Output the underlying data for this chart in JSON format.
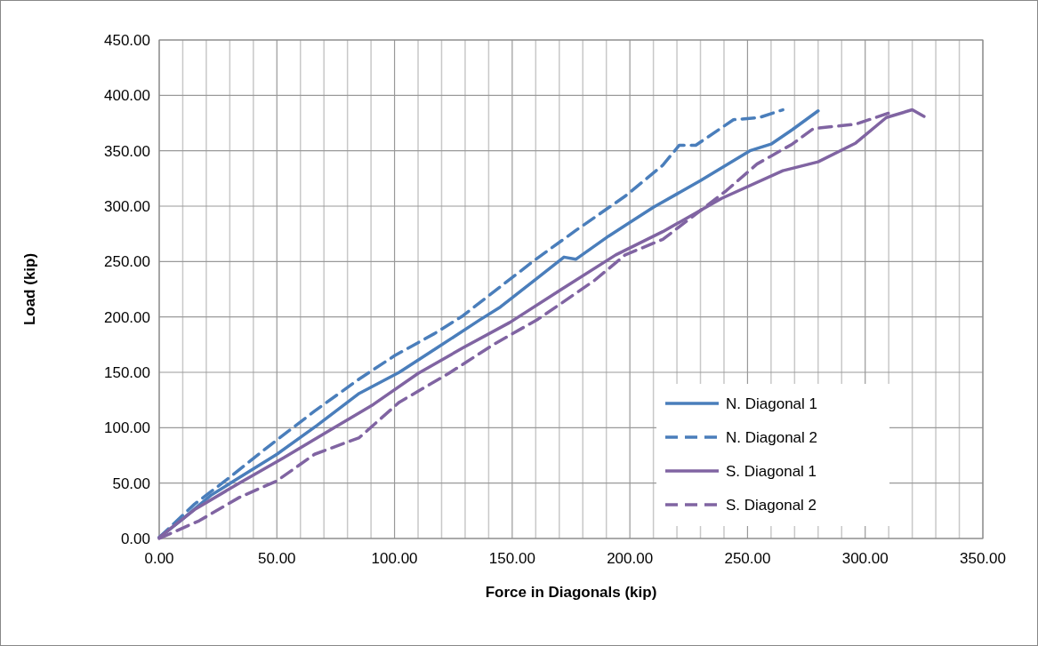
{
  "chart_data": {
    "type": "line",
    "xlabel": "Force in Diagonals (kip)",
    "ylabel": "Load (kip)",
    "xlim": [
      0,
      350
    ],
    "ylim": [
      0,
      450
    ],
    "xticks": [
      {
        "value": 0,
        "label": "0.00"
      },
      {
        "value": 10,
        "label": null
      },
      {
        "value": 20,
        "label": null
      },
      {
        "value": 30,
        "label": null
      },
      {
        "value": 40,
        "label": null
      },
      {
        "value": 50,
        "label": "50.00"
      },
      {
        "value": 60,
        "label": null
      },
      {
        "value": 70,
        "label": null
      },
      {
        "value": 80,
        "label": null
      },
      {
        "value": 90,
        "label": null
      },
      {
        "value": 100,
        "label": "100.00"
      },
      {
        "value": 110,
        "label": null
      },
      {
        "value": 120,
        "label": null
      },
      {
        "value": 130,
        "label": null
      },
      {
        "value": 140,
        "label": null
      },
      {
        "value": 150,
        "label": "150.00"
      },
      {
        "value": 160,
        "label": null
      },
      {
        "value": 170,
        "label": null
      },
      {
        "value": 180,
        "label": null
      },
      {
        "value": 190,
        "label": null
      },
      {
        "value": 200,
        "label": "200.00"
      },
      {
        "value": 210,
        "label": null
      },
      {
        "value": 220,
        "label": null
      },
      {
        "value": 230,
        "label": null
      },
      {
        "value": 240,
        "label": null
      },
      {
        "value": 250,
        "label": "250.00"
      },
      {
        "value": 260,
        "label": null
      },
      {
        "value": 270,
        "label": null
      },
      {
        "value": 280,
        "label": null
      },
      {
        "value": 290,
        "label": null
      },
      {
        "value": 300,
        "label": "300.00"
      },
      {
        "value": 310,
        "label": null
      },
      {
        "value": 320,
        "label": null
      },
      {
        "value": 330,
        "label": null
      },
      {
        "value": 340,
        "label": null
      },
      {
        "value": 350,
        "label": "350.00"
      }
    ],
    "yticks": [
      {
        "value": 0,
        "label": "0.00"
      },
      {
        "value": 50,
        "label": "50.00"
      },
      {
        "value": 100,
        "label": "100.00"
      },
      {
        "value": 150,
        "label": "150.00"
      },
      {
        "value": 200,
        "label": "200.00"
      },
      {
        "value": 250,
        "label": "250.00"
      },
      {
        "value": 300,
        "label": "300.00"
      },
      {
        "value": 350,
        "label": "350.00"
      },
      {
        "value": 400,
        "label": "400.00"
      },
      {
        "value": 450,
        "label": "450.00"
      }
    ],
    "grid": true,
    "legend": "bottom right",
    "series": [
      {
        "name": "N. Diagonal 1",
        "color": "#4a7ebb",
        "line_style": "solid",
        "x": [
          0,
          9,
          22,
          34,
          50,
          67,
          85,
          102,
          118,
          136,
          145,
          160,
          172,
          177,
          191,
          210,
          230,
          251,
          260,
          269,
          280
        ],
        "values": [
          1,
          16,
          39,
          55,
          76,
          102,
          131,
          150,
          172,
          197,
          209,
          234,
          254,
          252,
          273,
          299,
          323,
          350,
          356,
          369,
          386
        ]
      },
      {
        "name": "N. Diagonal 2",
        "color": "#4a7ebb",
        "line_style": "dashed",
        "x": [
          0,
          15,
          28,
          47,
          66,
          85,
          100,
          117,
          129,
          160,
          177,
          198,
          214,
          221,
          228,
          244,
          255,
          265
        ],
        "values": [
          1,
          31,
          52,
          84,
          115,
          144,
          165,
          185,
          201,
          252,
          278,
          309,
          337,
          355,
          355,
          378,
          380,
          387
        ]
      },
      {
        "name": "S. Diagonal 1",
        "color": "#8064a2",
        "line_style": "solid",
        "x": [
          0,
          15,
          34,
          53,
          72,
          91,
          110,
          129,
          149,
          171,
          194,
          214,
          239,
          265,
          280,
          296,
          309,
          320,
          325
        ],
        "values": [
          1,
          26,
          50,
          73,
          97,
          121,
          149,
          172,
          195,
          225,
          256,
          277,
          307,
          332,
          340,
          357,
          380,
          387,
          381
        ]
      },
      {
        "name": "S. Diagonal 2",
        "color": "#8064a2",
        "line_style": "dashed",
        "x": [
          0,
          17,
          34,
          50,
          66,
          85,
          102,
          123,
          142,
          161,
          170,
          185,
          198,
          214,
          241,
          254,
          269,
          278,
          296,
          310
        ],
        "values": [
          0,
          16,
          37,
          52,
          76,
          91,
          123,
          149,
          175,
          198,
          211,
          233,
          256,
          270,
          314,
          338,
          356,
          370,
          374,
          384
        ]
      }
    ]
  }
}
